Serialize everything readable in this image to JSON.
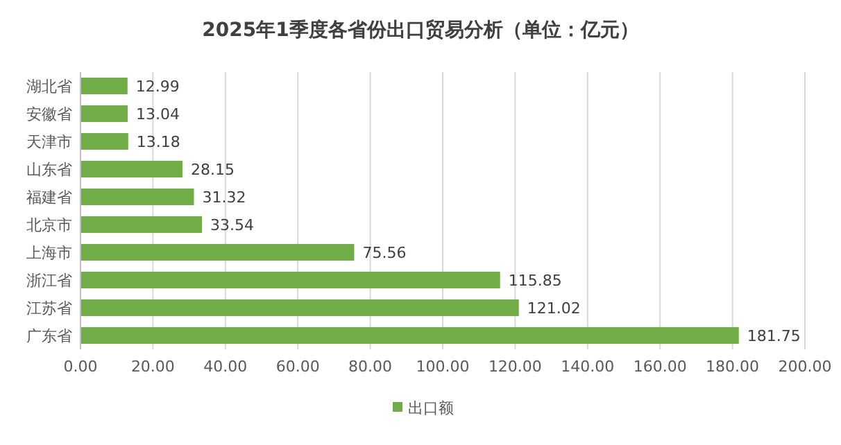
{
  "chart_data": {
    "type": "bar",
    "orientation": "horizontal",
    "title": "2025年1季度各省份出口贸易分析（单位：亿元）",
    "categories": [
      "湖北省",
      "安徽省",
      "天津市",
      "山东省",
      "福建省",
      "北京市",
      "上海市",
      "浙江省",
      "江苏省",
      "广东省"
    ],
    "series": [
      {
        "name": "出口额",
        "color": "#70ad47",
        "values": [
          12.99,
          13.04,
          13.18,
          28.15,
          31.32,
          33.54,
          75.56,
          115.85,
          121.02,
          181.75
        ]
      }
    ],
    "xlim": [
      0,
      200
    ],
    "xticks": [
      {
        "value": 0,
        "label": "0.00"
      },
      {
        "value": 20,
        "label": "20.00"
      },
      {
        "value": 40,
        "label": "40.00"
      },
      {
        "value": 60,
        "label": "60.00"
      },
      {
        "value": 80,
        "label": "80.00"
      },
      {
        "value": 100,
        "label": "100.00"
      },
      {
        "value": 120,
        "label": "120.00"
      },
      {
        "value": 140,
        "label": "140.00"
      },
      {
        "value": 160,
        "label": "160.00"
      },
      {
        "value": 180,
        "label": "180.00"
      },
      {
        "value": 200,
        "label": "200.00"
      }
    ],
    "grid": "x",
    "legend": "bottom",
    "data_labels": true
  }
}
